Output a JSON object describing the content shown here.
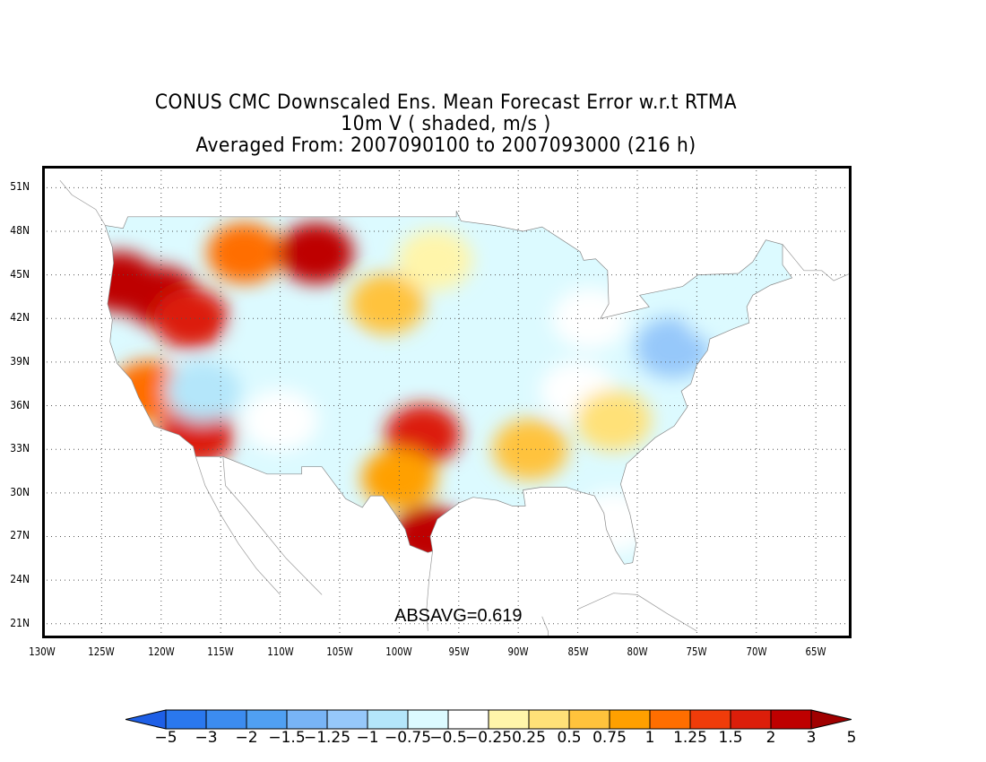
{
  "title": {
    "line1": "CONUS CMC Downscaled Ens. Mean Forecast Error w.r.t RTMA",
    "line2": "10m V ( shaded, m/s )",
    "line3": "Averaged From: 2007090100 to 2007093000 (216 h)"
  },
  "annotation": "ABSAVG=0.619",
  "axes": {
    "lat_labels": [
      "51N",
      "48N",
      "45N",
      "42N",
      "39N",
      "36N",
      "33N",
      "30N",
      "27N",
      "24N",
      "21N"
    ],
    "lon_labels": [
      "130W",
      "125W",
      "120W",
      "115W",
      "110W",
      "105W",
      "100W",
      "95W",
      "90W",
      "85W",
      "80W",
      "75W",
      "70W",
      "65W"
    ]
  },
  "colorbar": {
    "levels": [
      "-5",
      "-3",
      "-2",
      "-1.5",
      "-1.25",
      "-1",
      "-0.75",
      "-0.5",
      "-0.25",
      "0.25",
      "0.5",
      "0.75",
      "1",
      "1.25",
      "1.5",
      "2",
      "3",
      "5"
    ],
    "colors": [
      "#1e5fe6",
      "#2a78ee",
      "#3c8cf0",
      "#50a0f2",
      "#78b4f6",
      "#96c8fa",
      "#b4e6fa",
      "#dcfaff",
      "#ffffff",
      "#fff5aa",
      "#ffe178",
      "#ffc33c",
      "#ffa000",
      "#ff6e00",
      "#f03c0a",
      "#dc1e0a",
      "#be0000",
      "#a00000"
    ]
  },
  "chart_data": {
    "type": "heatmap",
    "title": "CONUS CMC Downscaled Ens. Mean Forecast Error w.r.t RTMA",
    "variable": "10m V ( shaded, m/s )",
    "period": "Averaged From: 2007090100 to 2007093000 (216 h)",
    "xlim": [
      -130,
      -62
    ],
    "ylim": [
      20,
      52.5
    ],
    "grid": true,
    "regions": [
      {
        "lon": -123.5,
        "lat": 44.5,
        "value": 2
      },
      {
        "lon": -120,
        "lat": 43.5,
        "value": 2
      },
      {
        "lon": -117.5,
        "lat": 42,
        "value": 1.5
      },
      {
        "lon": -113,
        "lat": 46.5,
        "value": 1
      },
      {
        "lon": -107,
        "lat": 46.5,
        "value": 2
      },
      {
        "lon": -121,
        "lat": 37,
        "value": 1
      },
      {
        "lon": -117,
        "lat": 34,
        "value": 1.5
      },
      {
        "lon": -116.5,
        "lat": 37,
        "value": -1
      },
      {
        "lon": -111,
        "lat": 40,
        "value": -0.75
      },
      {
        "lon": -106,
        "lat": 38.5,
        "value": -0.75
      },
      {
        "lon": -110,
        "lat": 35,
        "value": -0.5
      },
      {
        "lon": -98,
        "lat": 34,
        "value": 1.5
      },
      {
        "lon": -97.5,
        "lat": 27,
        "value": 2
      },
      {
        "lon": -100,
        "lat": 31,
        "value": 0.75
      },
      {
        "lon": -101,
        "lat": 43,
        "value": 0.5
      },
      {
        "lon": -97,
        "lat": 46,
        "value": -0.25
      },
      {
        "lon": -88,
        "lat": 46,
        "value": -0.75
      },
      {
        "lon": -84,
        "lat": 42,
        "value": -0.5
      },
      {
        "lon": -85,
        "lat": 37,
        "value": -0.5
      },
      {
        "lon": -77,
        "lat": 40,
        "value": -1.25
      },
      {
        "lon": -73,
        "lat": 42.5,
        "value": -0.75
      },
      {
        "lon": -70,
        "lat": 44.5,
        "value": -0.75
      },
      {
        "lon": -82,
        "lat": 28,
        "value": -0.5
      },
      {
        "lon": -89,
        "lat": 33,
        "value": 0.5
      },
      {
        "lon": -82,
        "lat": 35,
        "value": 0.25
      }
    ]
  }
}
